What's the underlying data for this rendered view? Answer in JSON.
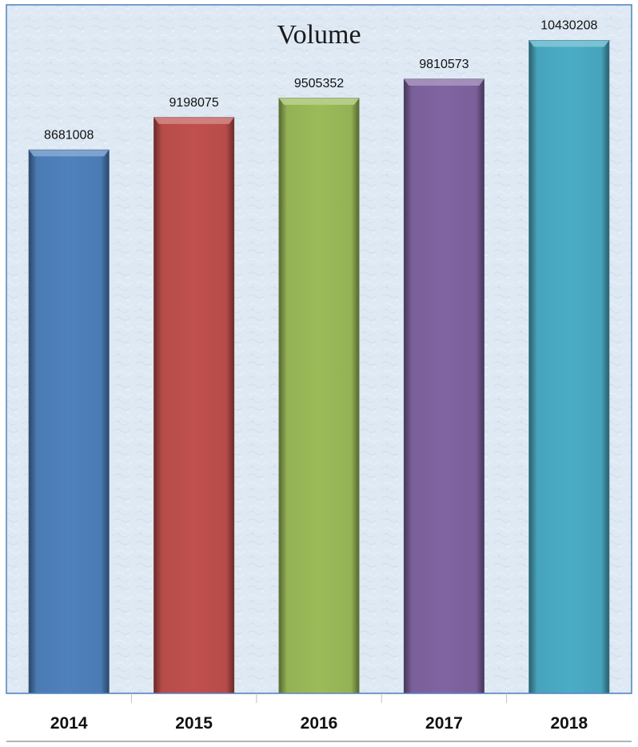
{
  "chart_data": {
    "type": "bar",
    "title": "Volume",
    "categories": [
      "2014",
      "2015",
      "2016",
      "2017",
      "2018"
    ],
    "values": [
      8681008,
      9198075,
      9505352,
      9810573,
      10430208
    ],
    "value_labels": [
      "8681008",
      "9198075",
      "9505352",
      "9810573",
      "10430208"
    ],
    "colors": [
      "#4f81bd",
      "#c0504d",
      "#9bbb59",
      "#8064a2",
      "#4bacc6"
    ],
    "ylim": [
      0,
      11000000
    ],
    "grid": false,
    "legend": "none",
    "background_color": "#dfe9f4",
    "border_color": "#4f81bd"
  }
}
